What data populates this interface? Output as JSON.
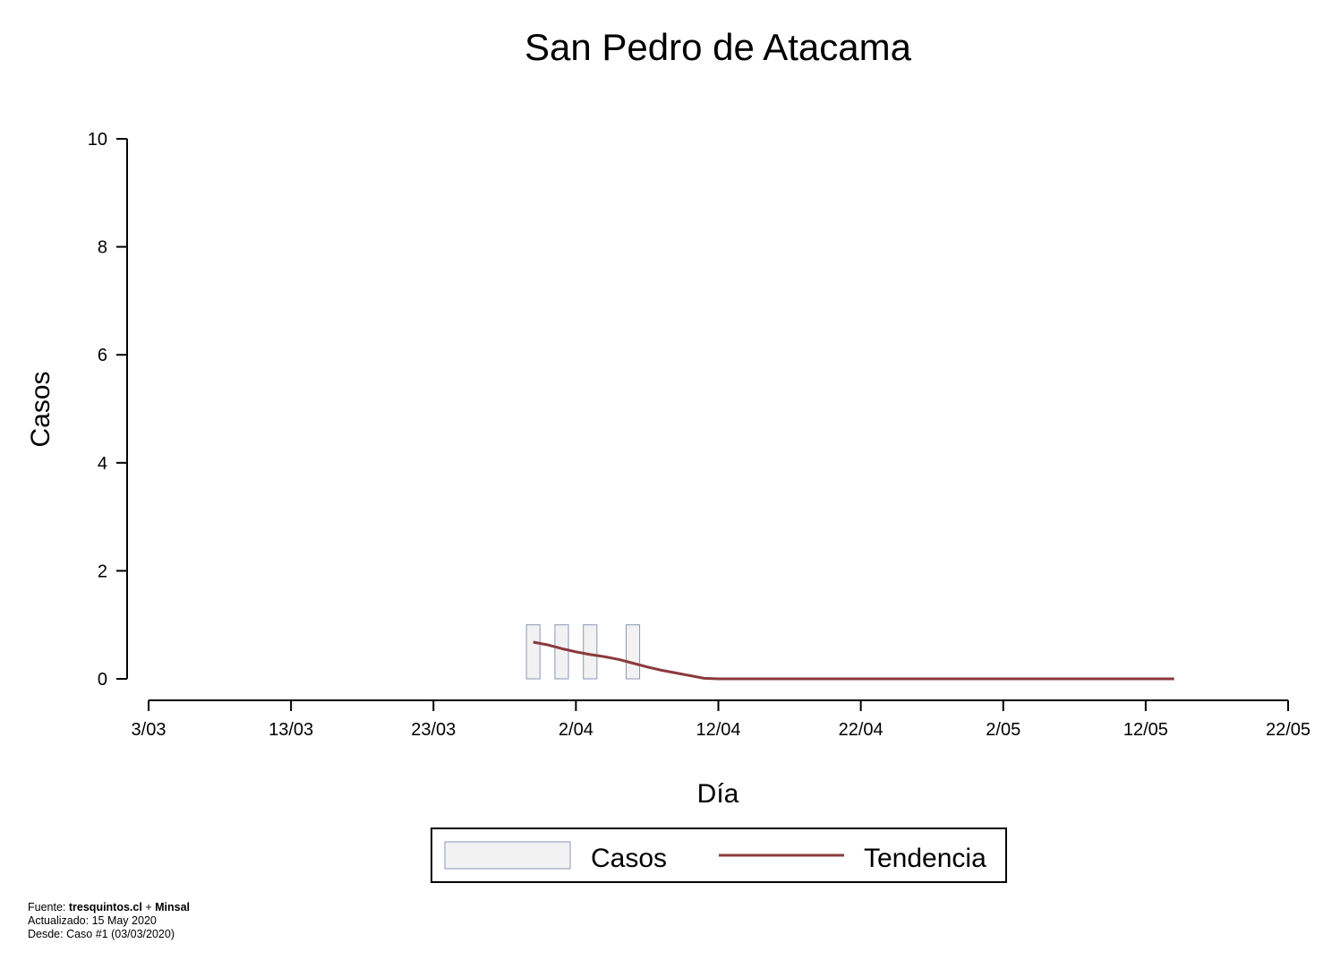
{
  "chart_data": {
    "type": "bar",
    "title": "San Pedro de Atacama",
    "xlabel": "Día",
    "ylabel": "Casos",
    "x_ticks": [
      {
        "date": "2020-03-03",
        "label": "3/03"
      },
      {
        "date": "2020-03-13",
        "label": "13/03"
      },
      {
        "date": "2020-03-23",
        "label": "23/03"
      },
      {
        "date": "2020-04-02",
        "label": "2/04"
      },
      {
        "date": "2020-04-12",
        "label": "12/04"
      },
      {
        "date": "2020-04-22",
        "label": "22/04"
      },
      {
        "date": "2020-05-02",
        "label": "2/05"
      },
      {
        "date": "2020-05-12",
        "label": "12/05"
      },
      {
        "date": "2020-05-22",
        "label": "22/05"
      }
    ],
    "xlim": [
      "2020-03-03",
      "2020-05-22"
    ],
    "y_ticks": [
      0,
      2,
      4,
      6,
      8,
      10
    ],
    "ylim": [
      0,
      10
    ],
    "grid": false,
    "legend_position": "bottom-center",
    "series": [
      {
        "name": "Casos",
        "type": "bar",
        "color": "#f2f2f2",
        "stroke": "#8796b8",
        "points": [
          {
            "date": "2020-03-30",
            "value": 1
          },
          {
            "date": "2020-04-01",
            "value": 1
          },
          {
            "date": "2020-04-03",
            "value": 1
          },
          {
            "date": "2020-04-06",
            "value": 1
          }
        ]
      },
      {
        "name": "Tendencia",
        "type": "line",
        "color": "#8b3a3c",
        "points": [
          {
            "date": "2020-03-30",
            "value": 0.68
          },
          {
            "date": "2020-03-31",
            "value": 0.63
          },
          {
            "date": "2020-04-01",
            "value": 0.56
          },
          {
            "date": "2020-04-02",
            "value": 0.5
          },
          {
            "date": "2020-04-03",
            "value": 0.45
          },
          {
            "date": "2020-04-04",
            "value": 0.41
          },
          {
            "date": "2020-04-05",
            "value": 0.36
          },
          {
            "date": "2020-04-06",
            "value": 0.29
          },
          {
            "date": "2020-04-07",
            "value": 0.22
          },
          {
            "date": "2020-04-08",
            "value": 0.16
          },
          {
            "date": "2020-04-09",
            "value": 0.11
          },
          {
            "date": "2020-04-10",
            "value": 0.06
          },
          {
            "date": "2020-04-11",
            "value": 0.01
          },
          {
            "date": "2020-04-12",
            "value": 0
          },
          {
            "date": "2020-05-14",
            "value": 0
          }
        ]
      }
    ]
  },
  "footer": {
    "line1_prefix": "Fuente: ",
    "line1_source": "tresquintos.cl",
    "line1_sep": " + ",
    "line1_source2": "Minsal",
    "line2": "Actualizado: 15 May 2020",
    "line3": "Desde: Caso #1  (03/03/2020)"
  }
}
